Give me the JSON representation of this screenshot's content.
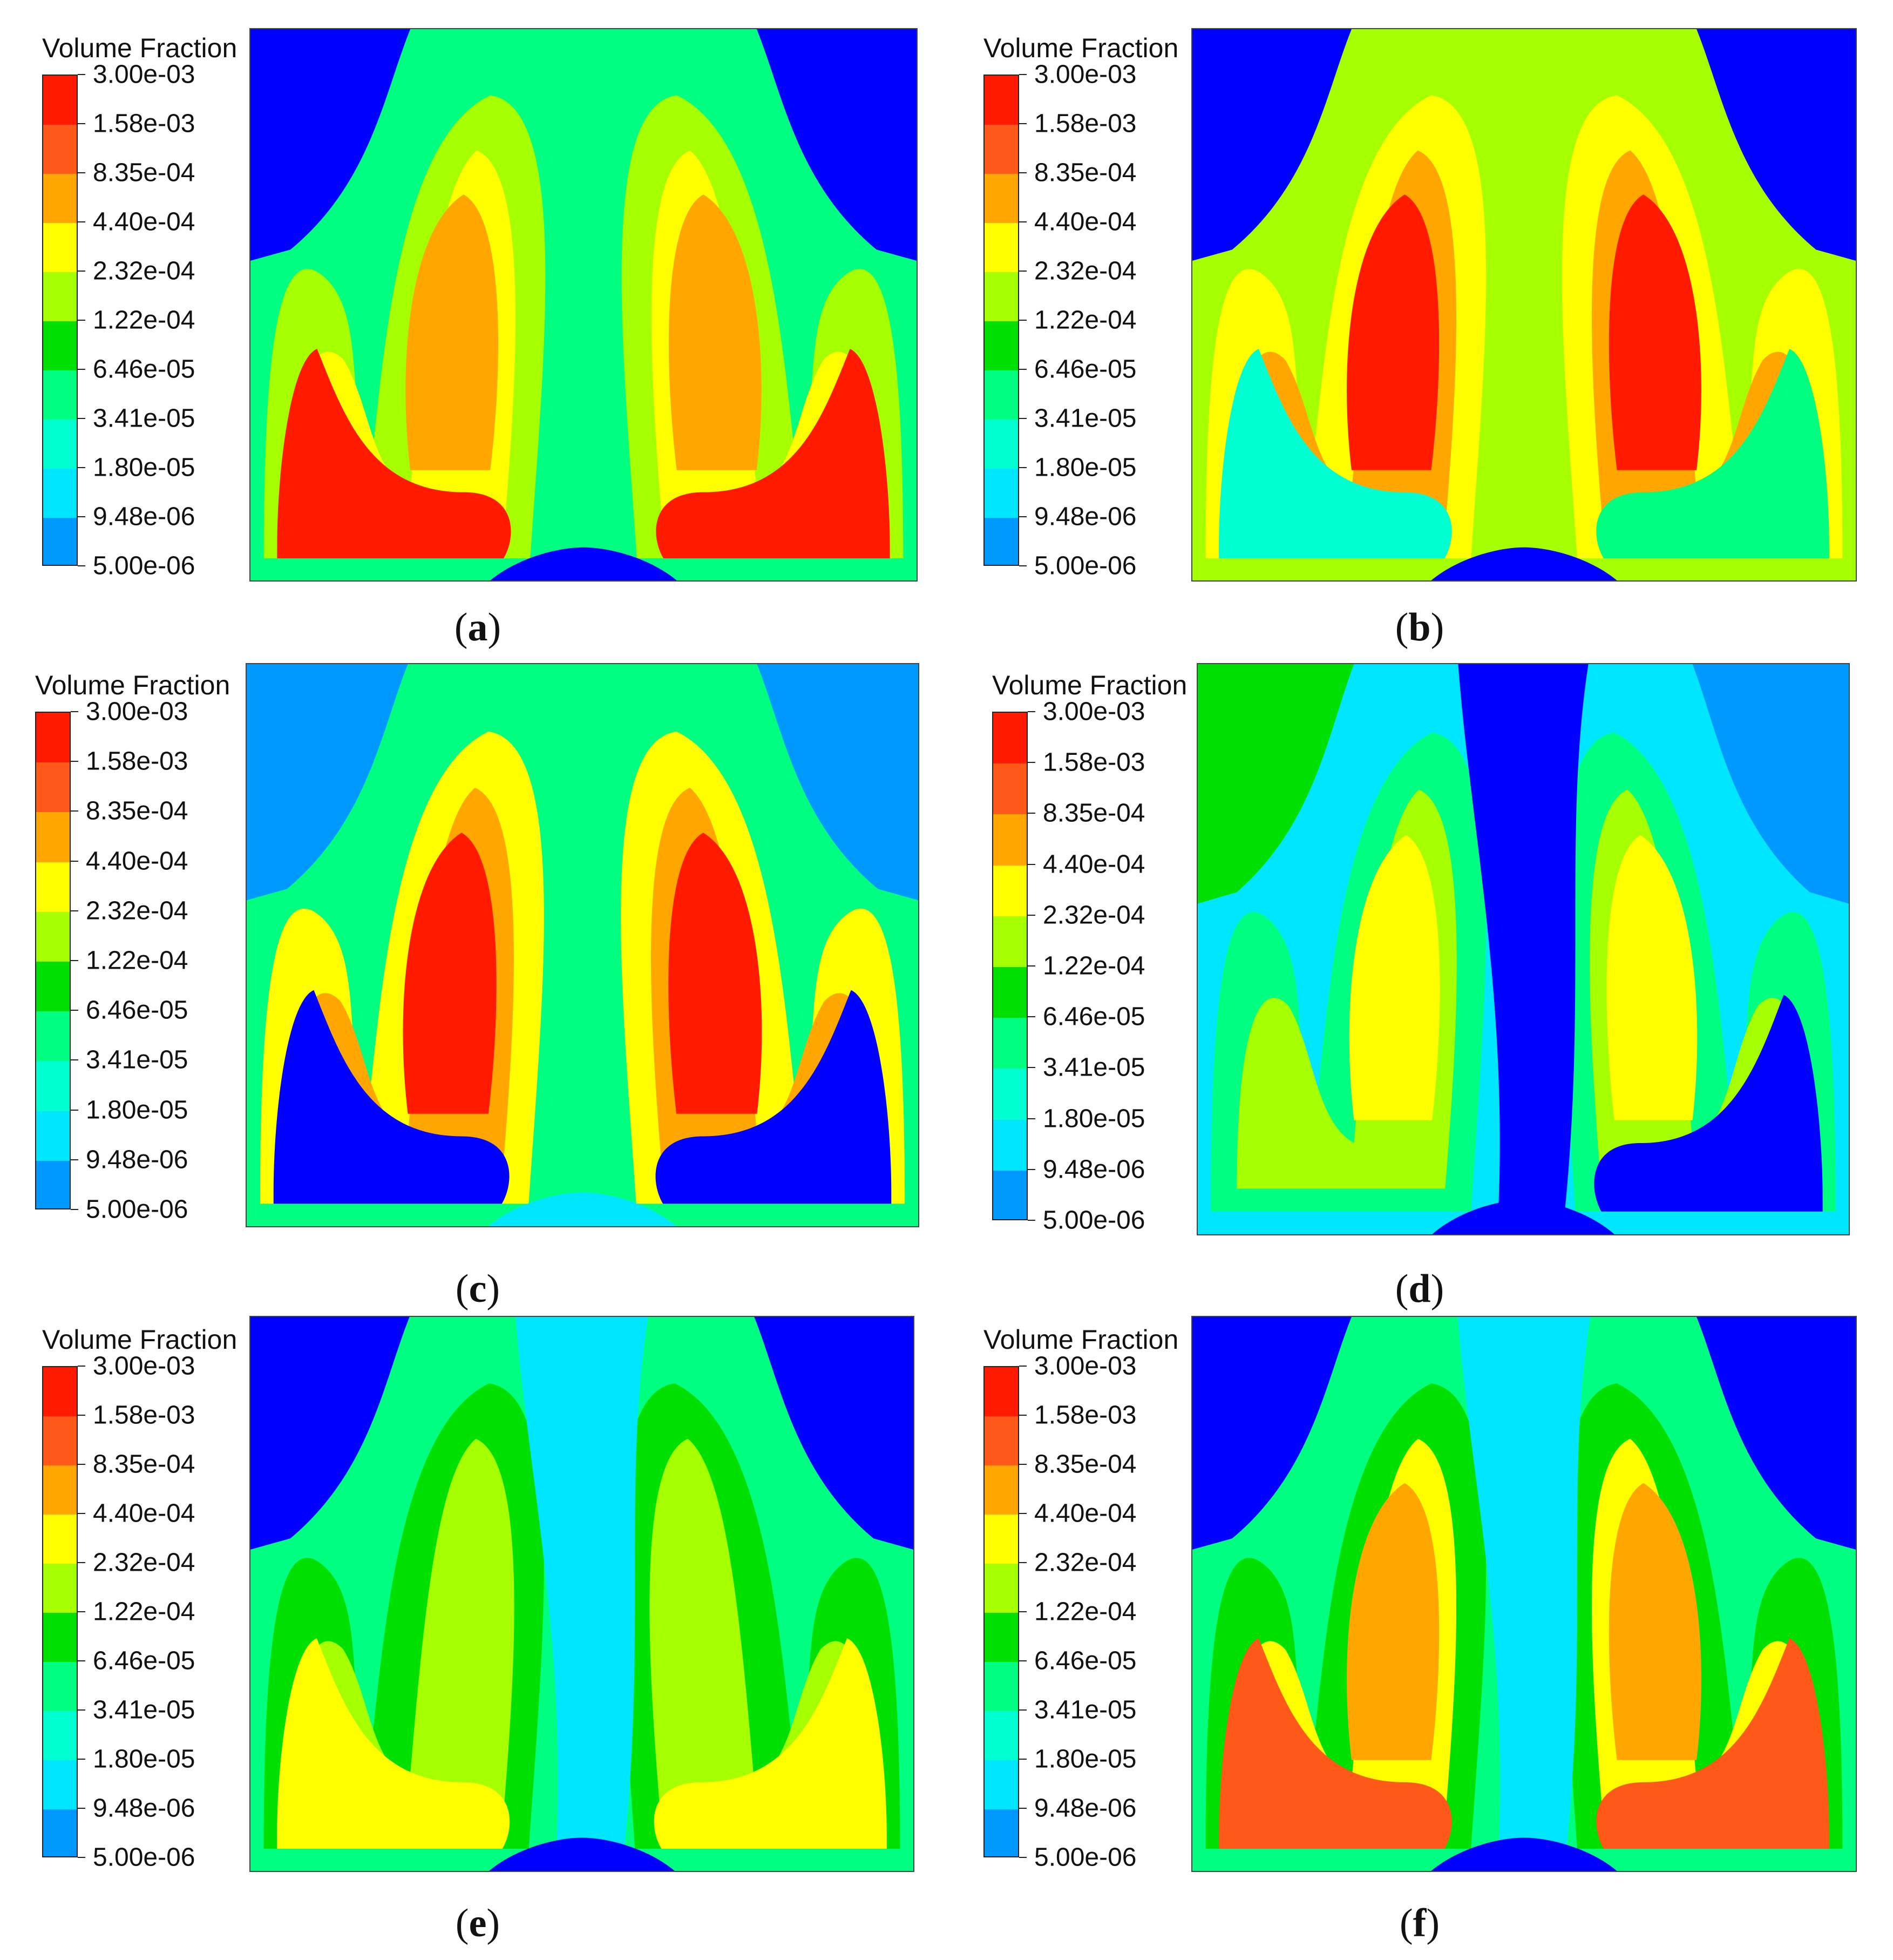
{
  "legend": {
    "title": "Volume Fraction",
    "levels": [
      "3.00e-03",
      "1.58e-03",
      "8.35e-04",
      "4.40e-04",
      "2.32e-04",
      "1.22e-04",
      "6.46e-05",
      "3.41e-05",
      "1.80e-05",
      "9.48e-06",
      "5.00e-06"
    ],
    "colors": [
      "#ff1a00",
      "#ff5a1a",
      "#ffa600",
      "#ffff00",
      "#a6ff00",
      "#00e000",
      "#00ff80",
      "#00ffd0",
      "#00e6ff",
      "#0099ff",
      "#0000ff"
    ]
  },
  "panels": [
    {
      "id": "a",
      "caption": "a",
      "background": "#00ff80",
      "blobs": [
        {
          "color": "#0000ff",
          "shape": "corner-tl"
        },
        {
          "color": "#0000ff",
          "shape": "corner-tr"
        },
        {
          "color": "#a6ff00",
          "shape": "left-arch"
        },
        {
          "color": "#a6ff00",
          "shape": "right-arch"
        },
        {
          "color": "#ffff00",
          "shape": "left-arch-in"
        },
        {
          "color": "#ffff00",
          "shape": "right-arch-in"
        },
        {
          "color": "#ffa600",
          "shape": "left-arch-core"
        },
        {
          "color": "#ffa600",
          "shape": "right-arch-core"
        },
        {
          "color": "#ff1a00",
          "shape": "left-bottom"
        },
        {
          "color": "#ff1a00",
          "shape": "right-bottom"
        },
        {
          "color": "#0000ff",
          "shape": "bottom-center"
        }
      ]
    },
    {
      "id": "b",
      "caption": "b",
      "background": "#a6ff00",
      "blobs": [
        {
          "color": "#0000ff",
          "shape": "corner-tl"
        },
        {
          "color": "#0000ff",
          "shape": "corner-tr"
        },
        {
          "color": "#ffff00",
          "shape": "left-arch"
        },
        {
          "color": "#ffff00",
          "shape": "right-arch"
        },
        {
          "color": "#ffa600",
          "shape": "left-arch-in"
        },
        {
          "color": "#ffa600",
          "shape": "right-arch-in"
        },
        {
          "color": "#ff1a00",
          "shape": "left-arch-core"
        },
        {
          "color": "#ff1a00",
          "shape": "right-arch-core"
        },
        {
          "color": "#00ffd0",
          "shape": "left-bottom"
        },
        {
          "color": "#00ff80",
          "shape": "right-bottom"
        },
        {
          "color": "#0000ff",
          "shape": "bottom-center"
        }
      ]
    },
    {
      "id": "c",
      "caption": "c",
      "background": "#00ff80",
      "blobs": [
        {
          "color": "#0099ff",
          "shape": "corner-tl"
        },
        {
          "color": "#0099ff",
          "shape": "corner-tr"
        },
        {
          "color": "#ffff00",
          "shape": "left-arch"
        },
        {
          "color": "#ffff00",
          "shape": "right-arch"
        },
        {
          "color": "#ffa600",
          "shape": "left-arch-in"
        },
        {
          "color": "#ffa600",
          "shape": "right-arch-in"
        },
        {
          "color": "#ff1a00",
          "shape": "left-arch-core"
        },
        {
          "color": "#ff1a00",
          "shape": "right-arch-core"
        },
        {
          "color": "#0000ff",
          "shape": "left-bottom"
        },
        {
          "color": "#0000ff",
          "shape": "right-bottom"
        },
        {
          "color": "#00e6ff",
          "shape": "bottom-center"
        }
      ]
    },
    {
      "id": "d",
      "caption": "d",
      "background": "#00e6ff",
      "blobs": [
        {
          "color": "#00e000",
          "shape": "corner-tl"
        },
        {
          "color": "#0099ff",
          "shape": "corner-tr"
        },
        {
          "color": "#00ff80",
          "shape": "left-arch"
        },
        {
          "color": "#00ff80",
          "shape": "right-arch"
        },
        {
          "color": "#a6ff00",
          "shape": "left-arch-in"
        },
        {
          "color": "#a6ff00",
          "shape": "right-arch-in"
        },
        {
          "color": "#ffff00",
          "shape": "left-arch-core"
        },
        {
          "color": "#ffff00",
          "shape": "right-arch-core"
        },
        {
          "color": "#0000ff",
          "shape": "center-column"
        },
        {
          "color": "#0000ff",
          "shape": "right-bottom"
        },
        {
          "color": "#0000ff",
          "shape": "bottom-center"
        }
      ]
    },
    {
      "id": "e",
      "caption": "e",
      "background": "#00ff80",
      "blobs": [
        {
          "color": "#0000ff",
          "shape": "corner-tl"
        },
        {
          "color": "#0000ff",
          "shape": "corner-tr"
        },
        {
          "color": "#00e000",
          "shape": "left-arch"
        },
        {
          "color": "#00e000",
          "shape": "right-arch"
        },
        {
          "color": "#a6ff00",
          "shape": "left-arch-in"
        },
        {
          "color": "#a6ff00",
          "shape": "right-arch-in"
        },
        {
          "color": "#ffff00",
          "shape": "left-bottom"
        },
        {
          "color": "#ffff00",
          "shape": "right-bottom"
        },
        {
          "color": "#00e6ff",
          "shape": "center-column"
        },
        {
          "color": "#0000ff",
          "shape": "bottom-center"
        }
      ]
    },
    {
      "id": "f",
      "caption": "f",
      "background": "#00ff80",
      "blobs": [
        {
          "color": "#0000ff",
          "shape": "corner-tl"
        },
        {
          "color": "#0000ff",
          "shape": "corner-tr"
        },
        {
          "color": "#00e000",
          "shape": "left-arch"
        },
        {
          "color": "#00e000",
          "shape": "right-arch"
        },
        {
          "color": "#ffff00",
          "shape": "left-arch-in"
        },
        {
          "color": "#ffff00",
          "shape": "right-arch-in"
        },
        {
          "color": "#ffa600",
          "shape": "left-arch-core"
        },
        {
          "color": "#ffa600",
          "shape": "right-arch-core"
        },
        {
          "color": "#ff5a1a",
          "shape": "left-bottom"
        },
        {
          "color": "#ff5a1a",
          "shape": "right-bottom"
        },
        {
          "color": "#00e6ff",
          "shape": "center-column"
        },
        {
          "color": "#0000ff",
          "shape": "bottom-center"
        }
      ]
    }
  ]
}
